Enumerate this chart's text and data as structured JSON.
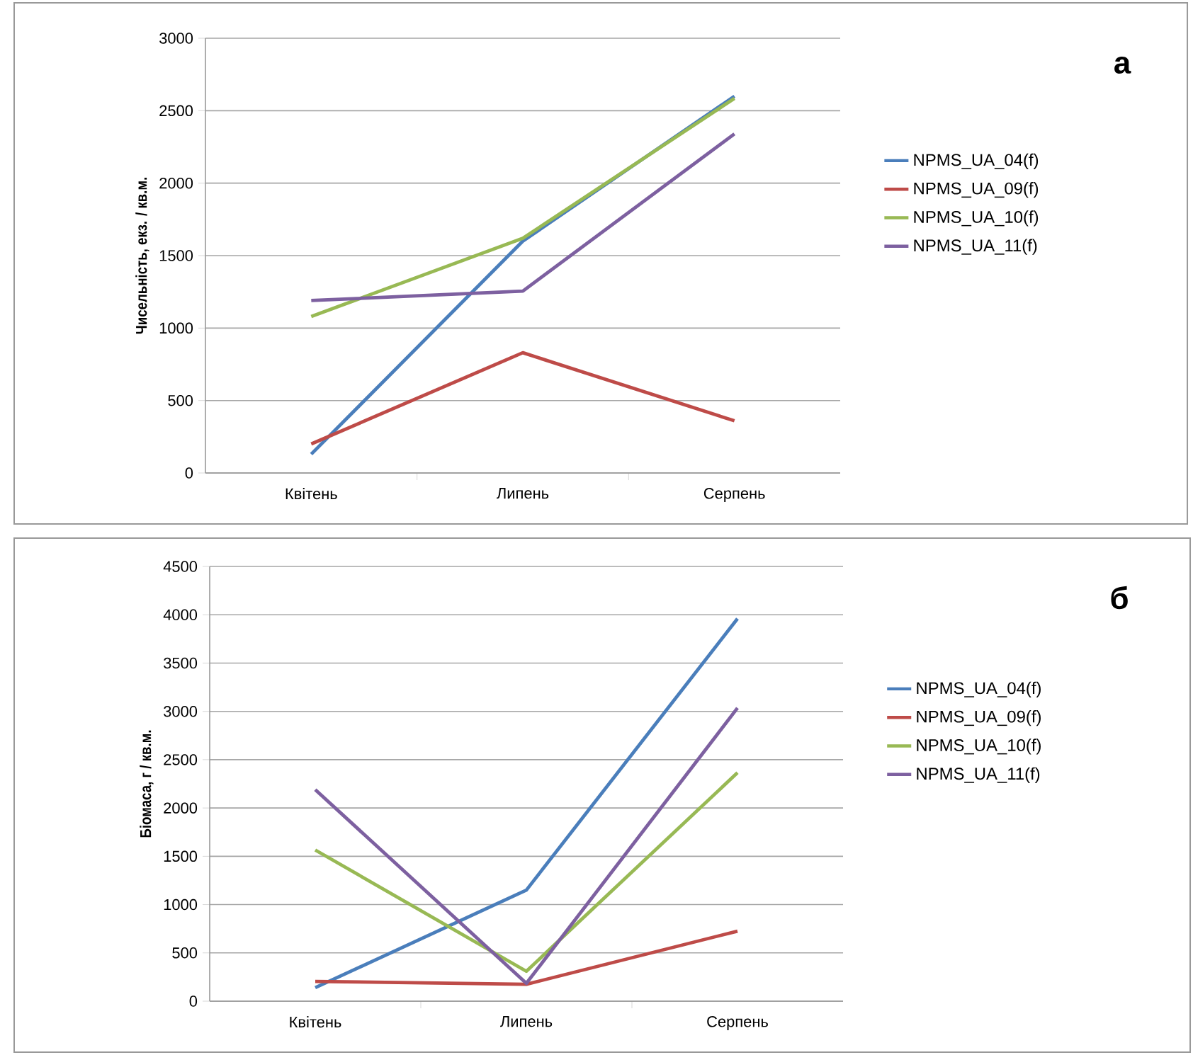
{
  "chart_data": [
    {
      "type": "line",
      "categories": [
        "Квітень",
        "Липень",
        "Серпень"
      ],
      "ylabel": "Чисельність, екз. / кв.м.",
      "ylim": [
        0,
        3000
      ],
      "yticks": [
        0,
        500,
        1000,
        1500,
        2000,
        2500,
        3000
      ],
      "grid": "y",
      "legend": "right",
      "marker": "none",
      "annotations": [
        "а"
      ],
      "series": [
        {
          "name": "NPMS_UA_04(f)",
          "color": "#4a7ebb",
          "values": [
            130,
            1600,
            2600
          ]
        },
        {
          "name": "NPMS_UA_09(f)",
          "color": "#be4b48",
          "values": [
            200,
            830,
            360
          ]
        },
        {
          "name": "NPMS_UA_10(f)",
          "color": "#98b954",
          "values": [
            1080,
            1620,
            2585
          ]
        },
        {
          "name": "NPMS_UA_11(f)",
          "color": "#7d60a0",
          "values": [
            1190,
            1255,
            2340
          ]
        }
      ]
    },
    {
      "type": "line",
      "categories": [
        "Квітень",
        "Липень",
        "Серпень"
      ],
      "ylabel": "Біомаса, г / кв.м.",
      "ylim": [
        0,
        4500
      ],
      "yticks": [
        0,
        500,
        1000,
        1500,
        2000,
        2500,
        3000,
        3500,
        4000,
        4500
      ],
      "grid": "y",
      "legend": "right",
      "marker": "none",
      "annotations": [
        "б"
      ],
      "series": [
        {
          "name": "NPMS_UA_04(f)",
          "color": "#4a7ebb",
          "values": [
            140,
            1150,
            3960
          ]
        },
        {
          "name": "NPMS_UA_09(f)",
          "color": "#be4b48",
          "values": [
            205,
            175,
            725
          ]
        },
        {
          "name": "NPMS_UA_10(f)",
          "color": "#98b954",
          "values": [
            1565,
            310,
            2365
          ]
        },
        {
          "name": "NPMS_UA_11(f)",
          "color": "#7d60a0",
          "values": [
            2190,
            185,
            3035
          ]
        }
      ]
    }
  ]
}
